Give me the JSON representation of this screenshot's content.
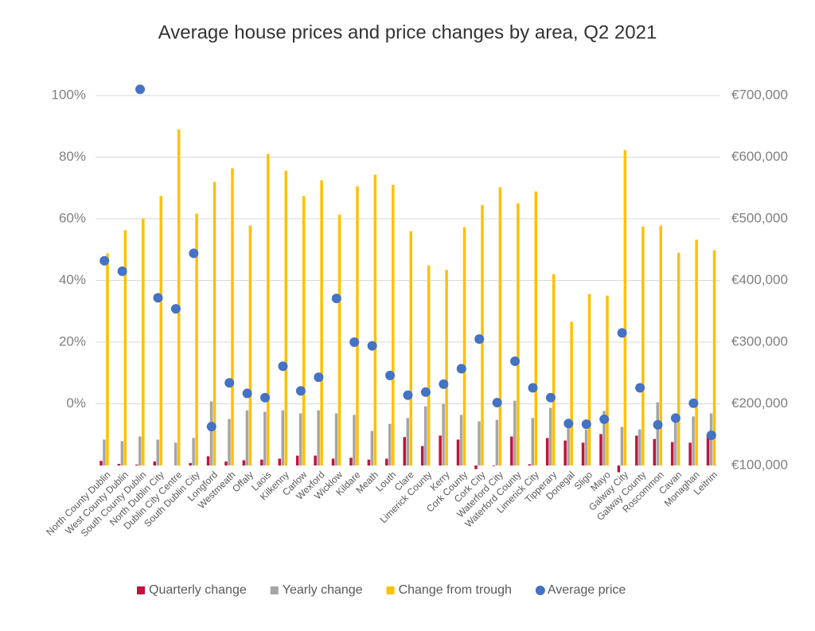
{
  "chart_data": {
    "type": "bar",
    "title": "Average house prices and price changes by area, Q2 2021",
    "categories": [
      "North County Dublin",
      "West County Dublin",
      "South County Dublin",
      "North Dublin City",
      "Dublin City Centre",
      "South Dublin City",
      "Longford",
      "Westmeath",
      "Offaly",
      "Laois",
      "Kilkenny",
      "Carlow",
      "Wexford",
      "Wicklow",
      "Kildare",
      "Meath",
      "Louth",
      "Clare",
      "Limerick County",
      "Kerry",
      "Cork County",
      "Cork City",
      "Waterford City",
      "Waterford County",
      "Limerick City",
      "Tipperary",
      "Donegal",
      "Sligo",
      "Mayo",
      "Galway City",
      "Galway County",
      "Roscommon",
      "Cavan",
      "Monaghan",
      "Leitrim"
    ],
    "series": [
      {
        "name": "Quarterly change",
        "type": "bar",
        "color": "#c0143c",
        "values": [
          -18.5,
          -19.5,
          -19.7,
          -18.7,
          -20,
          -19.2,
          -17.0,
          -18.7,
          -18.3,
          -18.1,
          -17.8,
          -16.8,
          -16.8,
          -17.8,
          -17.5,
          -18.1,
          -17.8,
          -10.8,
          -13.7,
          -10.3,
          -11.6,
          -21.2,
          -20.2,
          -10.6,
          -19.6,
          -11.1,
          -11.9,
          -12.6,
          -9.8,
          -22.2,
          -10.3,
          -11.4,
          -12.4,
          -12.6,
          -9.8
        ]
      },
      {
        "name": "Yearly change",
        "type": "bar",
        "color": "#a5a5a5",
        "values": [
          -11.6,
          -12.1,
          -10.6,
          -11.6,
          -12.6,
          -11.1,
          0.8,
          -4.9,
          -2.1,
          -2.6,
          -2.1,
          -3.1,
          -2.1,
          -3.1,
          -3.6,
          -8.8,
          -6.5,
          -4.6,
          -0.8,
          0,
          -3.6,
          -5.7,
          -5.2,
          1.0,
          -4.6,
          -1.3,
          -5.7,
          -8.3,
          -2.3,
          -7.5,
          -8.3,
          0.5,
          -5.7,
          -4.1,
          -3.1
        ]
      },
      {
        "name": "Change from trough",
        "type": "bar",
        "color": "#ffc000",
        "values": [
          48.8,
          56.3,
          60.1,
          67.4,
          89.0,
          61.7,
          72.0,
          76.4,
          57.8,
          81.0,
          75.6,
          67.4,
          72.5,
          61.4,
          70.5,
          74.3,
          71.0,
          56.0,
          44.9,
          43.4,
          57.3,
          64.5,
          70.2,
          65.0,
          68.9,
          42.1,
          26.6,
          35.6,
          35.1,
          82.3,
          57.5,
          57.8,
          49.0,
          53.2,
          49.8
        ]
      },
      {
        "name": "Average price",
        "type": "scatter",
        "axis": "y2",
        "color": "#4472c4",
        "values": [
          432000,
          415000,
          710000,
          372000,
          354000,
          444000,
          163000,
          234000,
          217000,
          210000,
          261000,
          221000,
          243000,
          371000,
          300000,
          294000,
          246000,
          214000,
          219000,
          232000,
          257000,
          305000,
          202000,
          269000,
          226000,
          210000,
          168000,
          167000,
          175000,
          315000,
          226000,
          166000,
          177000,
          201000,
          149000
        ]
      }
    ],
    "ylim": [
      -20,
      100
    ],
    "yticks": [
      {
        "value": 0,
        "label": "0%"
      },
      {
        "value": 20,
        "label": "20%"
      },
      {
        "value": 40,
        "label": "40%"
      },
      {
        "value": 60,
        "label": "60%"
      },
      {
        "value": 80,
        "label": "80%"
      },
      {
        "value": 100,
        "label": "100%"
      }
    ],
    "y2lim": [
      100000,
      700000
    ],
    "y2ticks": [
      {
        "value": 100000,
        "label": "€100,000"
      },
      {
        "value": 200000,
        "label": "€200,000"
      },
      {
        "value": 300000,
        "label": "€300,000"
      },
      {
        "value": 400000,
        "label": "€400,000"
      },
      {
        "value": 500000,
        "label": "€500,000"
      },
      {
        "value": 600000,
        "label": "€600,000"
      },
      {
        "value": 700000,
        "label": "€700,000"
      }
    ],
    "grid": true,
    "legend": "bottom"
  }
}
